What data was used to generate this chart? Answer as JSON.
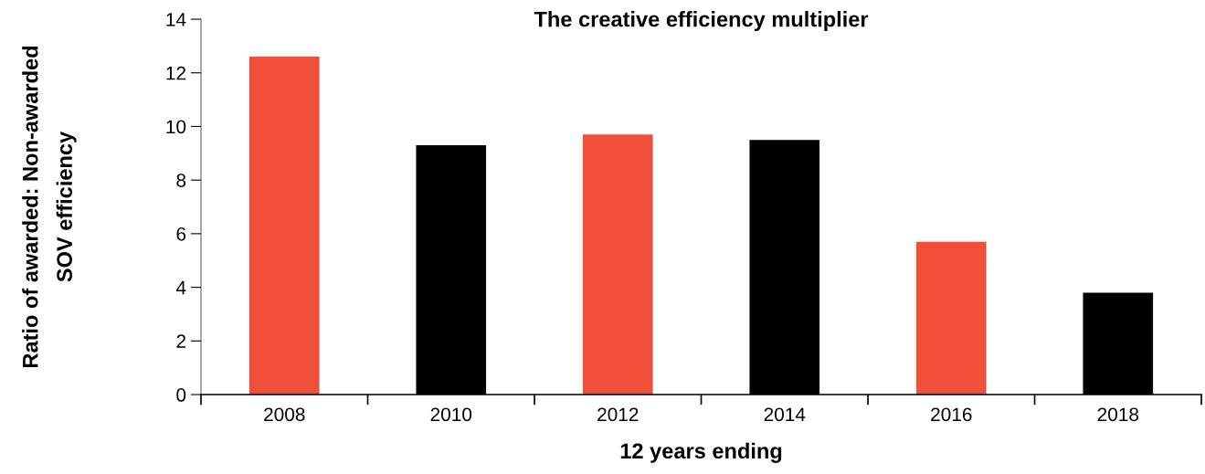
{
  "chart_data": {
    "type": "bar",
    "title": "The creative efficiency multiplier",
    "xlabel": "12 years ending",
    "ylabel": "Ratio of awarded: Non-awarded\nSOV efficiency",
    "categories": [
      "2008",
      "2010",
      "2012",
      "2014",
      "2016",
      "2018"
    ],
    "values": [
      12.6,
      9.3,
      9.7,
      9.5,
      5.7,
      3.8
    ],
    "colors": [
      "#f0503a",
      "#000000",
      "#f0503a",
      "#000000",
      "#f0503a",
      "#000000"
    ],
    "ylim": [
      0,
      14
    ],
    "yticks": [
      0,
      2,
      4,
      6,
      8,
      10,
      12,
      14
    ],
    "grid": false,
    "legend": false
  }
}
